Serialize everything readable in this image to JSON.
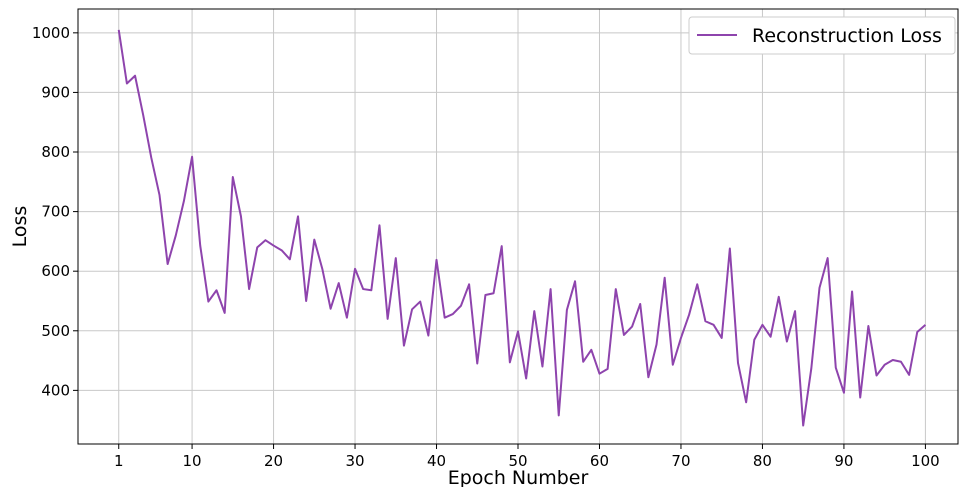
{
  "chart_data": {
    "type": "line",
    "title": "",
    "xlabel": "Epoch Number",
    "ylabel": "Loss",
    "xlim": [
      -4,
      104
    ],
    "ylim": [
      310,
      1040
    ],
    "xticks": [
      1,
      10,
      20,
      30,
      40,
      50,
      60,
      70,
      80,
      90,
      100
    ],
    "yticks": [
      400,
      500,
      600,
      700,
      800,
      900,
      1000
    ],
    "grid": true,
    "legend_position": "top-right",
    "colors": {
      "line": "#8e44ad",
      "grid": "#c8c8c8",
      "axis": "#000000"
    },
    "series": [
      {
        "name": "Reconstruction Loss",
        "x": [
          1,
          2,
          3,
          4,
          5,
          6,
          7,
          8,
          9,
          10,
          11,
          12,
          13,
          14,
          15,
          16,
          17,
          18,
          19,
          20,
          21,
          22,
          23,
          24,
          25,
          26,
          27,
          28,
          29,
          30,
          31,
          32,
          33,
          34,
          35,
          36,
          37,
          38,
          39,
          40,
          41,
          42,
          43,
          44,
          45,
          46,
          47,
          48,
          49,
          50,
          51,
          52,
          53,
          54,
          55,
          56,
          57,
          58,
          59,
          60,
          61,
          62,
          63,
          64,
          65,
          66,
          67,
          68,
          69,
          70,
          71,
          72,
          73,
          74,
          75,
          76,
          77,
          78,
          79,
          80,
          81,
          82,
          83,
          84,
          85,
          86,
          87,
          88,
          89,
          90,
          91,
          92,
          93,
          94,
          95,
          96,
          97,
          98,
          99,
          100
        ],
        "values": [
          1005,
          915,
          928,
          862,
          790,
          728,
          612,
          660,
          718,
          792,
          643,
          549,
          568,
          530,
          758,
          692,
          570,
          640,
          652,
          643,
          635,
          620,
          692,
          550,
          653,
          603,
          537,
          580,
          522,
          604,
          570,
          568,
          677,
          520,
          622,
          475,
          536,
          549,
          492,
          619,
          522,
          528,
          542,
          578,
          445,
          560,
          563,
          642,
          447,
          499,
          420,
          533,
          440,
          570,
          358,
          535,
          583,
          448,
          468,
          428,
          436,
          570,
          493,
          507,
          545,
          422,
          477,
          589,
          443,
          488,
          527,
          578,
          516,
          510,
          488,
          638,
          446,
          380,
          485,
          510,
          490,
          557,
          482,
          533,
          341,
          437,
          572,
          622,
          438,
          396,
          566,
          388,
          508,
          425,
          443,
          451,
          448,
          426,
          498,
          510
        ]
      }
    ]
  }
}
